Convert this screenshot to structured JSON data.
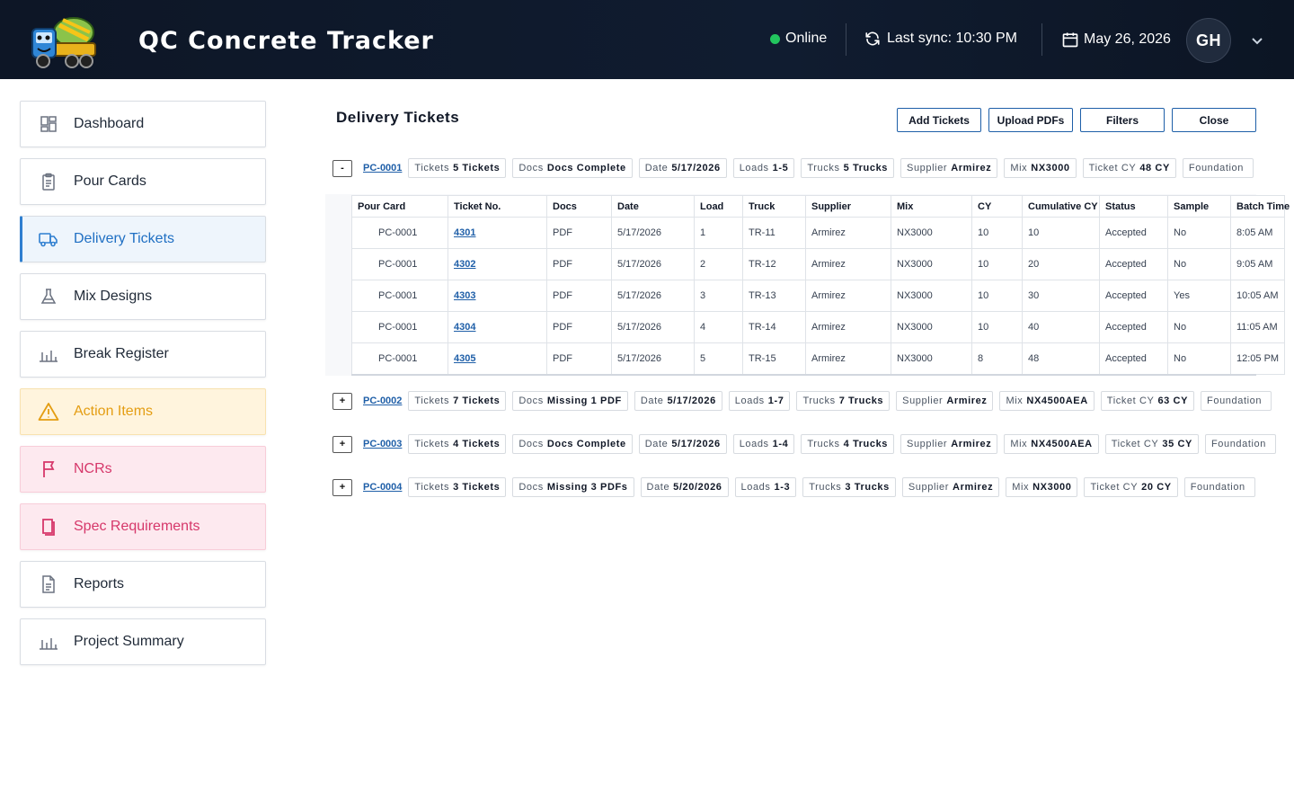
{
  "app": {
    "title": "QC Concrete Tracker"
  },
  "header": {
    "status": "Online",
    "last_sync": "Last sync: 10:30 PM",
    "date": "May 26, 2026",
    "avatar_initials": "GH",
    "status_color": "#22c55e"
  },
  "sidebar": {
    "items": [
      {
        "label": "Dashboard",
        "icon": "dashboard-icon"
      },
      {
        "label": "Pour Cards",
        "icon": "clipboard-icon"
      },
      {
        "label": "Delivery Tickets",
        "icon": "truck-icon",
        "active": true
      },
      {
        "label": "Mix Designs",
        "icon": "flask-icon"
      },
      {
        "label": "Break Register",
        "icon": "bar-chart-icon"
      },
      {
        "label": "Action Items",
        "icon": "warning-icon"
      },
      {
        "label": "NCRs",
        "icon": "flag-icon"
      },
      {
        "label": "Spec Requirements",
        "icon": "book-icon"
      },
      {
        "label": "Reports",
        "icon": "document-icon"
      },
      {
        "label": "Project Summary",
        "icon": "bar-chart-icon"
      }
    ]
  },
  "main": {
    "title": "Delivery Tickets",
    "buttons": {
      "add": "Add Tickets",
      "upload": "Upload PDFs",
      "filters": "Filters",
      "close": "Close"
    },
    "groups": [
      {
        "toggle": "-",
        "id": "PC-0001",
        "chips": [
          {
            "k": "Tickets",
            "v": "5 Tickets"
          },
          {
            "k": "Docs",
            "v": "Docs Complete"
          },
          {
            "k": "Date",
            "v": "5/17/2026"
          },
          {
            "k": "Loads",
            "v": "1-5"
          },
          {
            "k": "Trucks",
            "v": "5 Trucks"
          },
          {
            "k": "Supplier",
            "v": "Armirez"
          },
          {
            "k": "Mix",
            "v": "NX3000"
          },
          {
            "k": "Ticket CY",
            "v": "48 CY"
          },
          {
            "k": "Foundation",
            "v": ""
          }
        ]
      },
      {
        "toggle": "+",
        "id": "PC-0002",
        "chips": [
          {
            "k": "Tickets",
            "v": "7 Tickets"
          },
          {
            "k": "Docs",
            "v": "Missing 1 PDF"
          },
          {
            "k": "Date",
            "v": "5/17/2026"
          },
          {
            "k": "Loads",
            "v": "1-7"
          },
          {
            "k": "Trucks",
            "v": "7 Trucks"
          },
          {
            "k": "Supplier",
            "v": "Armirez"
          },
          {
            "k": "Mix",
            "v": "NX4500AEA"
          },
          {
            "k": "Ticket CY",
            "v": "63 CY"
          },
          {
            "k": "Foundation",
            "v": ""
          }
        ]
      },
      {
        "toggle": "+",
        "id": "PC-0003",
        "chips": [
          {
            "k": "Tickets",
            "v": "4 Tickets"
          },
          {
            "k": "Docs",
            "v": "Docs Complete"
          },
          {
            "k": "Date",
            "v": "5/17/2026"
          },
          {
            "k": "Loads",
            "v": "1-4"
          },
          {
            "k": "Trucks",
            "v": "4 Trucks"
          },
          {
            "k": "Supplier",
            "v": "Armirez"
          },
          {
            "k": "Mix",
            "v": "NX4500AEA"
          },
          {
            "k": "Ticket CY",
            "v": "35 CY"
          },
          {
            "k": "Foundation",
            "v": ""
          }
        ]
      },
      {
        "toggle": "+",
        "id": "PC-0004",
        "chips": [
          {
            "k": "Tickets",
            "v": "3 Tickets"
          },
          {
            "k": "Docs",
            "v": "Missing 3 PDFs"
          },
          {
            "k": "Date",
            "v": "5/20/2026"
          },
          {
            "k": "Loads",
            "v": "1-3"
          },
          {
            "k": "Trucks",
            "v": "3 Trucks"
          },
          {
            "k": "Supplier",
            "v": "Armirez"
          },
          {
            "k": "Mix",
            "v": "NX3000"
          },
          {
            "k": "Ticket CY",
            "v": "20 CY"
          },
          {
            "k": "Foundation",
            "v": ""
          }
        ]
      }
    ],
    "table": {
      "columns": [
        "Pour Card",
        "Ticket No.",
        "Docs",
        "Date",
        "Load",
        "Truck",
        "Supplier",
        "Mix",
        "CY",
        "Cumulative CY",
        "Status",
        "Sample",
        "Batch Time"
      ],
      "rows": [
        [
          "PC-0001",
          "4301",
          "PDF",
          "5/17/2026",
          "1",
          "TR-11",
          "Armirez",
          "NX3000",
          "10",
          "10",
          "Accepted",
          "No",
          "8:05 AM"
        ],
        [
          "PC-0001",
          "4302",
          "PDF",
          "5/17/2026",
          "2",
          "TR-12",
          "Armirez",
          "NX3000",
          "10",
          "20",
          "Accepted",
          "No",
          "9:05 AM"
        ],
        [
          "PC-0001",
          "4303",
          "PDF",
          "5/17/2026",
          "3",
          "TR-13",
          "Armirez",
          "NX3000",
          "10",
          "30",
          "Accepted",
          "Yes",
          "10:05 AM"
        ],
        [
          "PC-0001",
          "4304",
          "PDF",
          "5/17/2026",
          "4",
          "TR-14",
          "Armirez",
          "NX3000",
          "10",
          "40",
          "Accepted",
          "No",
          "11:05 AM"
        ],
        [
          "PC-0001",
          "4305",
          "PDF",
          "5/17/2026",
          "5",
          "TR-15",
          "Armirez",
          "NX3000",
          "8",
          "48",
          "Accepted",
          "No",
          "12:05 PM"
        ]
      ]
    }
  }
}
